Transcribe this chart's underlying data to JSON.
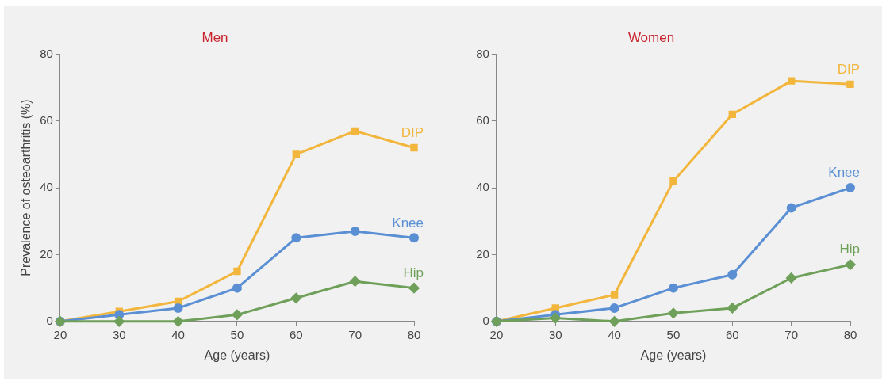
{
  "chart_data": [
    {
      "type": "line",
      "title": "Men",
      "xlabel": "Age (years)",
      "ylabel": "Prevalence of osteoarthritis (%)",
      "x": [
        20,
        30,
        40,
        50,
        60,
        70,
        80
      ],
      "xlim": [
        20,
        80
      ],
      "xticks": [
        20,
        30,
        40,
        50,
        60,
        70,
        80
      ],
      "ylim": [
        0,
        80
      ],
      "yticks": [
        0,
        20,
        40,
        60,
        80
      ],
      "grid": false,
      "legend": false,
      "series": [
        {
          "name": "DIP",
          "color": "#f2b63c",
          "marker": "square",
          "values": [
            0,
            3,
            6,
            15,
            50,
            57,
            52
          ]
        },
        {
          "name": "Knee",
          "color": "#5b8fd4",
          "marker": "circle",
          "values": [
            0,
            2,
            4,
            10,
            25,
            27,
            25
          ]
        },
        {
          "name": "Hip",
          "color": "#6fa05a",
          "marker": "diamond",
          "values": [
            0,
            0,
            0,
            2,
            7,
            12,
            10
          ]
        }
      ]
    },
    {
      "type": "line",
      "title": "Women",
      "xlabel": "Age (years)",
      "x": [
        20,
        30,
        40,
        50,
        60,
        70,
        80
      ],
      "xlim": [
        20,
        80
      ],
      "xticks": [
        20,
        30,
        40,
        50,
        60,
        70,
        80
      ],
      "ylim": [
        0,
        80
      ],
      "yticks": [
        0,
        20,
        40,
        60,
        80
      ],
      "grid": false,
      "legend": false,
      "series": [
        {
          "name": "DIP",
          "color": "#f2b63c",
          "marker": "square",
          "values": [
            0,
            4,
            8,
            42,
            62,
            72,
            71
          ]
        },
        {
          "name": "Knee",
          "color": "#5b8fd4",
          "marker": "circle",
          "values": [
            0,
            2,
            4,
            10,
            14,
            34,
            40
          ]
        },
        {
          "name": "Hip",
          "color": "#6fa05a",
          "marker": "diamond",
          "values": [
            0,
            1,
            0,
            2.5,
            4,
            13,
            17
          ]
        }
      ]
    }
  ]
}
